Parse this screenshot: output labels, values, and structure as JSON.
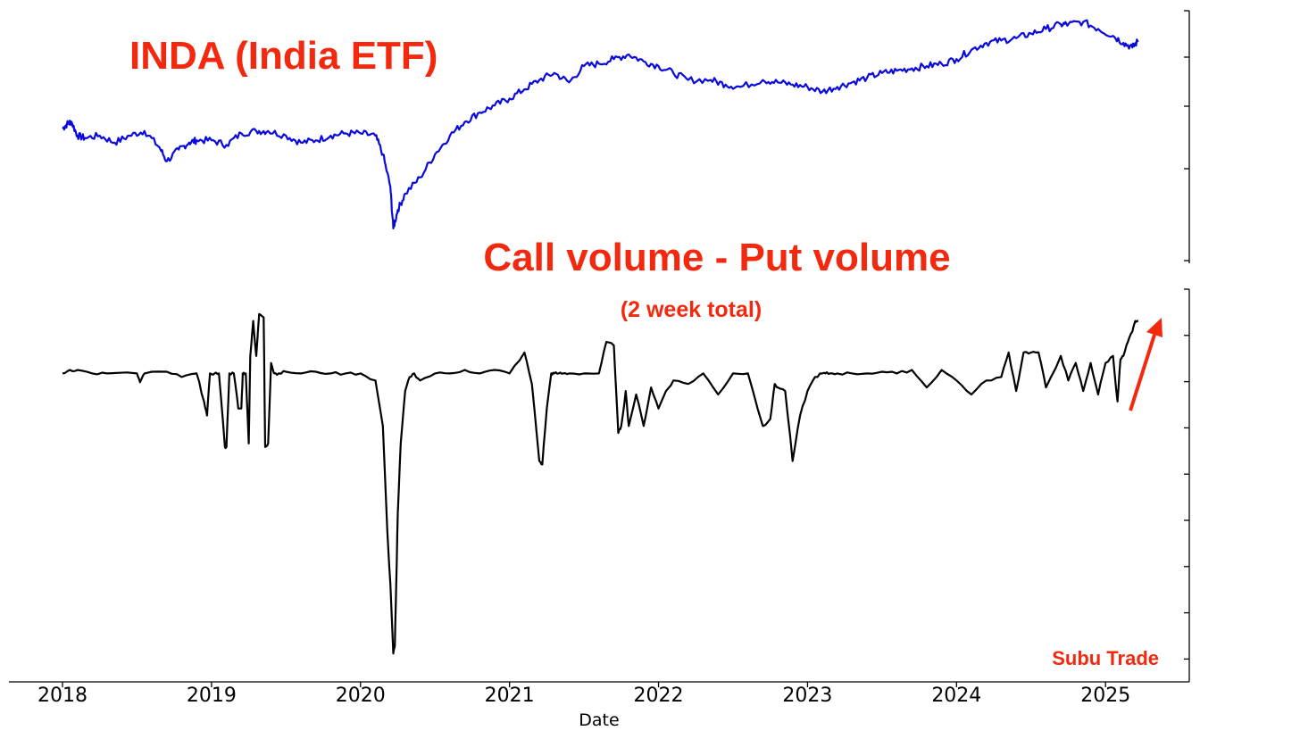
{
  "colors": {
    "price_line": "#0a0adc",
    "flow_line": "#000000",
    "annotation": "#f2290f",
    "axis": "#000000",
    "background": "#ffffff"
  },
  "text": {
    "top_title": "INDA (India ETF)",
    "bottom_title": "Call volume - Put volume",
    "bottom_subtitle": "(2 week total)",
    "watermark": "Subu Trade",
    "xlabel": "Date"
  },
  "chart_data": [
    {
      "type": "line",
      "panel": "top",
      "title": "INDA (India ETF)",
      "xlabel": "",
      "ylabel": "",
      "x_ticks": [
        "2018",
        "2019",
        "2020",
        "2021",
        "2022",
        "2023",
        "2024",
        "2025"
      ],
      "xlim": [
        2018.0,
        2025.55
      ],
      "ylim": [
        0,
        100
      ],
      "y_ticks_labeled": false,
      "grid": false,
      "series": [
        {
          "x": [
            2018.0,
            2018.03,
            2018.06,
            2018.1,
            2018.15,
            2018.25,
            2018.35,
            2018.45,
            2018.55,
            2018.65,
            2018.7,
            2018.78,
            2018.85,
            2018.9,
            2019.0,
            2019.1,
            2019.2,
            2019.3,
            2019.38,
            2019.5,
            2019.6,
            2019.7,
            2019.8,
            2019.9,
            2020.0,
            2020.1,
            2020.15,
            2020.2,
            2020.22,
            2020.25,
            2020.3,
            2020.4,
            2020.5,
            2020.6,
            2020.7,
            2020.8,
            2020.9,
            2021.0,
            2021.1,
            2021.2,
            2021.3,
            2021.4,
            2021.5,
            2021.6,
            2021.7,
            2021.8,
            2021.9,
            2022.0,
            2022.1,
            2022.2,
            2022.35,
            2022.45,
            2022.55,
            2022.7,
            2022.8,
            2022.9,
            2023.0,
            2023.1,
            2023.2,
            2023.3,
            2023.4,
            2023.5,
            2023.6,
            2023.7,
            2023.8,
            2023.9,
            2024.0,
            2024.1,
            2024.2,
            2024.3,
            2024.4,
            2024.5,
            2024.6,
            2024.7,
            2024.75,
            2024.85,
            2024.95,
            2025.05,
            2025.12,
            2025.18,
            2025.22
          ],
          "values": [
            53,
            55,
            56,
            50,
            49,
            50,
            47,
            50,
            52,
            45,
            39,
            44,
            47,
            48,
            48,
            46,
            51,
            52,
            52,
            50,
            47,
            48,
            50,
            51,
            51,
            50,
            42,
            28,
            10,
            18,
            25,
            32,
            42,
            50,
            56,
            60,
            63,
            66,
            70,
            74,
            77,
            73,
            80,
            81,
            83,
            85,
            82,
            80,
            77,
            74,
            74,
            72,
            71,
            74,
            73,
            72,
            71,
            69,
            71,
            73,
            75,
            77,
            78,
            79,
            80,
            81,
            83,
            87,
            90,
            91,
            92,
            94,
            96,
            98,
            98,
            99,
            96,
            93,
            90,
            88,
            91
          ]
        }
      ]
    },
    {
      "type": "line",
      "panel": "bottom",
      "title": "Call volume - Put volume",
      "subtitle": "(2 week total)",
      "xlabel": "Date",
      "ylabel": "",
      "x_ticks": [
        "2018",
        "2019",
        "2020",
        "2021",
        "2022",
        "2023",
        "2024",
        "2025"
      ],
      "xlim": [
        2018.0,
        2025.55
      ],
      "ylim": [
        -8.3,
        2.0
      ],
      "y_ticks_labeled": false,
      "grid": false,
      "annotations": [
        "Subu Trade"
      ],
      "series": [
        {
          "x": [
            2018.0,
            2018.05,
            2018.1,
            2018.2,
            2018.3,
            2018.5,
            2018.52,
            2018.55,
            2018.7,
            2018.8,
            2018.9,
            2018.95,
            2018.97,
            2018.99,
            2019.02,
            2019.05,
            2019.09,
            2019.1,
            2019.12,
            2019.15,
            2019.18,
            2019.2,
            2019.21,
            2019.23,
            2019.25,
            2019.26,
            2019.28,
            2019.3,
            2019.32,
            2019.35,
            2019.36,
            2019.38,
            2019.4,
            2019.42,
            2019.45,
            2019.5,
            2019.6,
            2019.7,
            2019.8,
            2019.9,
            2020.0,
            2020.1,
            2020.15,
            2020.18,
            2020.2,
            2020.22,
            2020.23,
            2020.24,
            2020.25,
            2020.27,
            2020.3,
            2020.33,
            2020.36,
            2020.4,
            2020.5,
            2020.6,
            2020.7,
            2020.8,
            2020.9,
            2021.0,
            2021.1,
            2021.15,
            2021.2,
            2021.22,
            2021.25,
            2021.28,
            2021.3,
            2021.33,
            2021.36,
            2021.4,
            2021.5,
            2021.6,
            2021.65,
            2021.7,
            2021.73,
            2021.75,
            2021.78,
            2021.8,
            2021.85,
            2021.9,
            2021.95,
            2022.0,
            2022.05,
            2022.1,
            2022.2,
            2022.3,
            2022.4,
            2022.5,
            2022.6,
            2022.7,
            2022.75,
            2022.78,
            2022.8,
            2022.85,
            2022.9,
            2022.95,
            2023.0,
            2023.05,
            2023.1,
            2023.12,
            2023.15,
            2023.2,
            2023.3,
            2023.4,
            2023.5,
            2023.6,
            2023.7,
            2023.8,
            2023.9,
            2024.0,
            2024.1,
            2024.2,
            2024.3,
            2024.35,
            2024.4,
            2024.45,
            2024.5,
            2024.55,
            2024.6,
            2024.7,
            2024.75,
            2024.8,
            2024.85,
            2024.9,
            2024.95,
            2025.0,
            2025.05,
            2025.08,
            2025.1,
            2025.12,
            2025.15,
            2025.18,
            2025.2,
            2025.22
          ],
          "values": [
            0,
            0.1,
            0.1,
            0,
            0,
            0,
            -0.25,
            0,
            0.05,
            -0.1,
            0,
            -0.8,
            -1.2,
            0,
            0,
            0,
            -2.1,
            -2.1,
            0,
            0,
            -1.0,
            -1.0,
            0,
            0,
            -2.0,
            0.5,
            1.5,
            0.5,
            1.7,
            1.6,
            -2.1,
            -2.0,
            0.3,
            0,
            0,
            0.05,
            0,
            0.05,
            0,
            0,
            0,
            -0.2,
            -1.5,
            -4.5,
            -6.0,
            -8.0,
            -7.8,
            -6.0,
            -4.0,
            -2.0,
            -0.5,
            -0.1,
            0,
            -0.2,
            0,
            0,
            0.1,
            0,
            0.1,
            0,
            0.6,
            -0.3,
            -2.5,
            -2.6,
            -1.0,
            0,
            0,
            0,
            0,
            0,
            0,
            0,
            0.9,
            0.8,
            -1.7,
            -1.5,
            -0.5,
            -1.5,
            -0.6,
            -1.5,
            -0.4,
            -1.0,
            -0.5,
            -0.2,
            -0.3,
            0,
            -0.6,
            0,
            0,
            -1.5,
            -1.3,
            -0.3,
            -0.4,
            -0.5,
            -2.5,
            -1.2,
            -0.5,
            -0.1,
            0,
            0,
            0,
            0,
            0,
            0,
            0.05,
            0,
            0.1,
            -0.4,
            0.1,
            -0.2,
            -0.6,
            -0.2,
            -0.1,
            0.6,
            -0.5,
            0.6,
            0.6,
            0.6,
            -0.4,
            0.5,
            -0.2,
            0.3,
            -0.5,
            0.3,
            -0.6,
            0.3,
            0.5,
            -0.8,
            0.4,
            0.5,
            0.9,
            1.2,
            1.5,
            1.5
          ]
        }
      ]
    }
  ]
}
